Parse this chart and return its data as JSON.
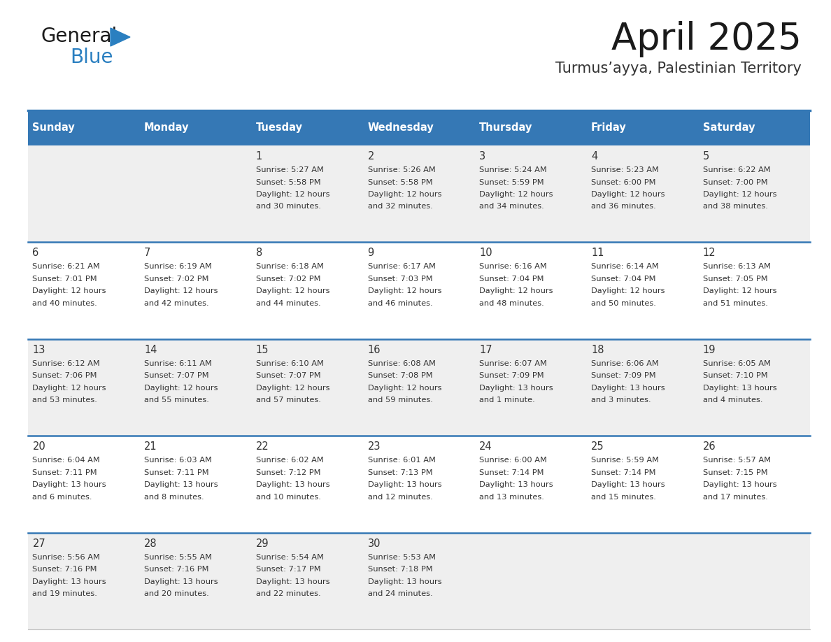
{
  "title": "April 2025",
  "subtitle": "Turmus’ayya, Palestinian Territory",
  "days_of_week": [
    "Sunday",
    "Monday",
    "Tuesday",
    "Wednesday",
    "Thursday",
    "Friday",
    "Saturday"
  ],
  "header_bg": "#3578b5",
  "header_text_color": "#ffffff",
  "row_bg_odd": "#efefef",
  "row_bg_even": "#ffffff",
  "row_line_color": "#3578b5",
  "cell_text_color": "#333333",
  "title_color": "#1a1a1a",
  "subtitle_color": "#333333",
  "logo_color_general": "#1a1a1a",
  "logo_color_blue": "#2a7fc0",
  "logo_triangle_color": "#2a7fc0",
  "calendar_data": [
    {
      "day": 1,
      "col": 2,
      "row": 0,
      "sunrise": "5:27 AM",
      "sunset": "5:58 PM",
      "daylight_line1": "Daylight: 12 hours",
      "daylight_line2": "and 30 minutes."
    },
    {
      "day": 2,
      "col": 3,
      "row": 0,
      "sunrise": "5:26 AM",
      "sunset": "5:58 PM",
      "daylight_line1": "Daylight: 12 hours",
      "daylight_line2": "and 32 minutes."
    },
    {
      "day": 3,
      "col": 4,
      "row": 0,
      "sunrise": "5:24 AM",
      "sunset": "5:59 PM",
      "daylight_line1": "Daylight: 12 hours",
      "daylight_line2": "and 34 minutes."
    },
    {
      "day": 4,
      "col": 5,
      "row": 0,
      "sunrise": "5:23 AM",
      "sunset": "6:00 PM",
      "daylight_line1": "Daylight: 12 hours",
      "daylight_line2": "and 36 minutes."
    },
    {
      "day": 5,
      "col": 6,
      "row": 0,
      "sunrise": "6:22 AM",
      "sunset": "7:00 PM",
      "daylight_line1": "Daylight: 12 hours",
      "daylight_line2": "and 38 minutes."
    },
    {
      "day": 6,
      "col": 0,
      "row": 1,
      "sunrise": "6:21 AM",
      "sunset": "7:01 PM",
      "daylight_line1": "Daylight: 12 hours",
      "daylight_line2": "and 40 minutes."
    },
    {
      "day": 7,
      "col": 1,
      "row": 1,
      "sunrise": "6:19 AM",
      "sunset": "7:02 PM",
      "daylight_line1": "Daylight: 12 hours",
      "daylight_line2": "and 42 minutes."
    },
    {
      "day": 8,
      "col": 2,
      "row": 1,
      "sunrise": "6:18 AM",
      "sunset": "7:02 PM",
      "daylight_line1": "Daylight: 12 hours",
      "daylight_line2": "and 44 minutes."
    },
    {
      "day": 9,
      "col": 3,
      "row": 1,
      "sunrise": "6:17 AM",
      "sunset": "7:03 PM",
      "daylight_line1": "Daylight: 12 hours",
      "daylight_line2": "and 46 minutes."
    },
    {
      "day": 10,
      "col": 4,
      "row": 1,
      "sunrise": "6:16 AM",
      "sunset": "7:04 PM",
      "daylight_line1": "Daylight: 12 hours",
      "daylight_line2": "and 48 minutes."
    },
    {
      "day": 11,
      "col": 5,
      "row": 1,
      "sunrise": "6:14 AM",
      "sunset": "7:04 PM",
      "daylight_line1": "Daylight: 12 hours",
      "daylight_line2": "and 50 minutes."
    },
    {
      "day": 12,
      "col": 6,
      "row": 1,
      "sunrise": "6:13 AM",
      "sunset": "7:05 PM",
      "daylight_line1": "Daylight: 12 hours",
      "daylight_line2": "and 51 minutes."
    },
    {
      "day": 13,
      "col": 0,
      "row": 2,
      "sunrise": "6:12 AM",
      "sunset": "7:06 PM",
      "daylight_line1": "Daylight: 12 hours",
      "daylight_line2": "and 53 minutes."
    },
    {
      "day": 14,
      "col": 1,
      "row": 2,
      "sunrise": "6:11 AM",
      "sunset": "7:07 PM",
      "daylight_line1": "Daylight: 12 hours",
      "daylight_line2": "and 55 minutes."
    },
    {
      "day": 15,
      "col": 2,
      "row": 2,
      "sunrise": "6:10 AM",
      "sunset": "7:07 PM",
      "daylight_line1": "Daylight: 12 hours",
      "daylight_line2": "and 57 minutes."
    },
    {
      "day": 16,
      "col": 3,
      "row": 2,
      "sunrise": "6:08 AM",
      "sunset": "7:08 PM",
      "daylight_line1": "Daylight: 12 hours",
      "daylight_line2": "and 59 minutes."
    },
    {
      "day": 17,
      "col": 4,
      "row": 2,
      "sunrise": "6:07 AM",
      "sunset": "7:09 PM",
      "daylight_line1": "Daylight: 13 hours",
      "daylight_line2": "and 1 minute."
    },
    {
      "day": 18,
      "col": 5,
      "row": 2,
      "sunrise": "6:06 AM",
      "sunset": "7:09 PM",
      "daylight_line1": "Daylight: 13 hours",
      "daylight_line2": "and 3 minutes."
    },
    {
      "day": 19,
      "col": 6,
      "row": 2,
      "sunrise": "6:05 AM",
      "sunset": "7:10 PM",
      "daylight_line1": "Daylight: 13 hours",
      "daylight_line2": "and 4 minutes."
    },
    {
      "day": 20,
      "col": 0,
      "row": 3,
      "sunrise": "6:04 AM",
      "sunset": "7:11 PM",
      "daylight_line1": "Daylight: 13 hours",
      "daylight_line2": "and 6 minutes."
    },
    {
      "day": 21,
      "col": 1,
      "row": 3,
      "sunrise": "6:03 AM",
      "sunset": "7:11 PM",
      "daylight_line1": "Daylight: 13 hours",
      "daylight_line2": "and 8 minutes."
    },
    {
      "day": 22,
      "col": 2,
      "row": 3,
      "sunrise": "6:02 AM",
      "sunset": "7:12 PM",
      "daylight_line1": "Daylight: 13 hours",
      "daylight_line2": "and 10 minutes."
    },
    {
      "day": 23,
      "col": 3,
      "row": 3,
      "sunrise": "6:01 AM",
      "sunset": "7:13 PM",
      "daylight_line1": "Daylight: 13 hours",
      "daylight_line2": "and 12 minutes."
    },
    {
      "day": 24,
      "col": 4,
      "row": 3,
      "sunrise": "6:00 AM",
      "sunset": "7:14 PM",
      "daylight_line1": "Daylight: 13 hours",
      "daylight_line2": "and 13 minutes."
    },
    {
      "day": 25,
      "col": 5,
      "row": 3,
      "sunrise": "5:59 AM",
      "sunset": "7:14 PM",
      "daylight_line1": "Daylight: 13 hours",
      "daylight_line2": "and 15 minutes."
    },
    {
      "day": 26,
      "col": 6,
      "row": 3,
      "sunrise": "5:57 AM",
      "sunset": "7:15 PM",
      "daylight_line1": "Daylight: 13 hours",
      "daylight_line2": "and 17 minutes."
    },
    {
      "day": 27,
      "col": 0,
      "row": 4,
      "sunrise": "5:56 AM",
      "sunset": "7:16 PM",
      "daylight_line1": "Daylight: 13 hours",
      "daylight_line2": "and 19 minutes."
    },
    {
      "day": 28,
      "col": 1,
      "row": 4,
      "sunrise": "5:55 AM",
      "sunset": "7:16 PM",
      "daylight_line1": "Daylight: 13 hours",
      "daylight_line2": "and 20 minutes."
    },
    {
      "day": 29,
      "col": 2,
      "row": 4,
      "sunrise": "5:54 AM",
      "sunset": "7:17 PM",
      "daylight_line1": "Daylight: 13 hours",
      "daylight_line2": "and 22 minutes."
    },
    {
      "day": 30,
      "col": 3,
      "row": 4,
      "sunrise": "5:53 AM",
      "sunset": "7:18 PM",
      "daylight_line1": "Daylight: 13 hours",
      "daylight_line2": "and 24 minutes."
    }
  ]
}
